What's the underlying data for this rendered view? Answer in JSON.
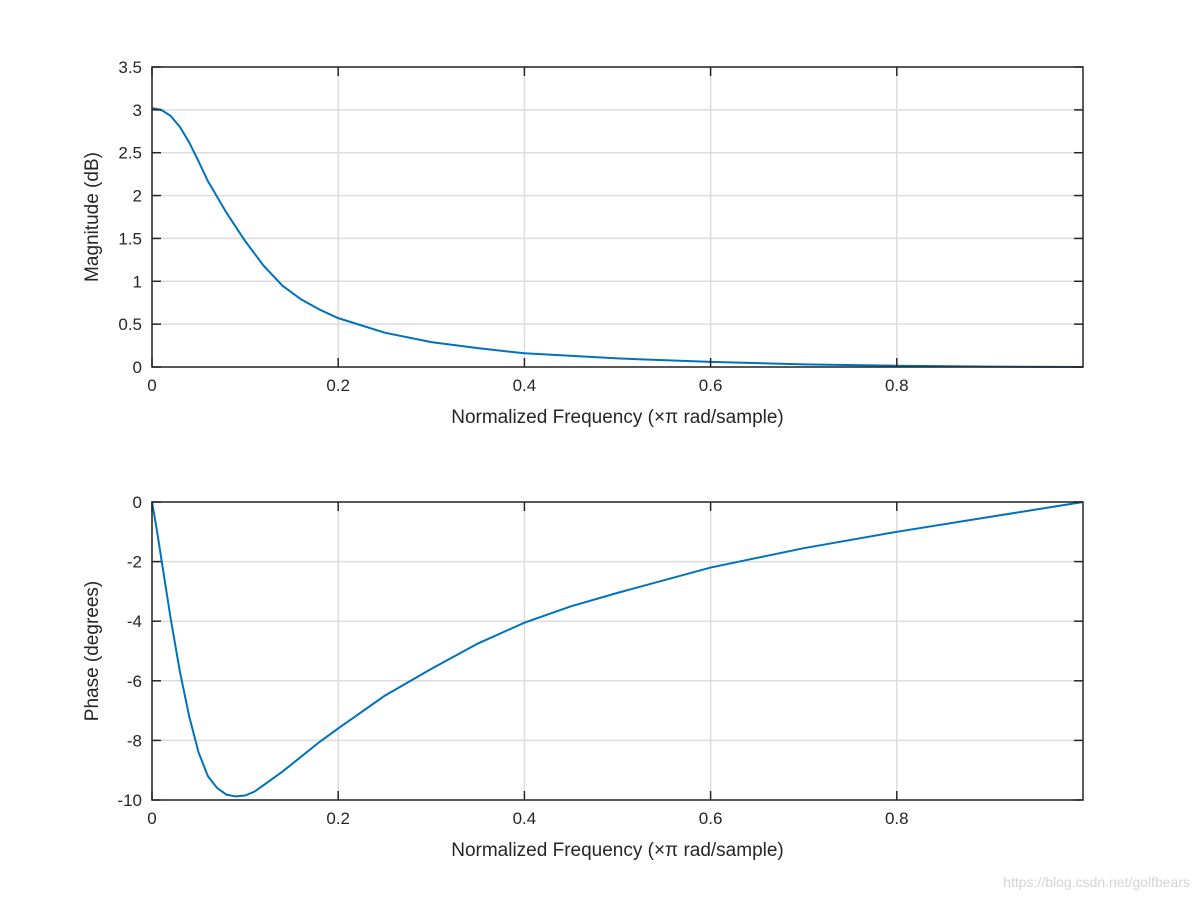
{
  "chart_data": [
    {
      "type": "line",
      "xlabel": "Normalized Frequency (×π rad/sample)",
      "ylabel": "Magnitude (dB)",
      "xlim": [
        0,
        1
      ],
      "ylim": [
        0,
        3.5
      ],
      "xticks": [
        0,
        0.2,
        0.4,
        0.6,
        0.8
      ],
      "xtick_labels": [
        "0",
        "0.2",
        "0.4",
        "0.6",
        "0.8"
      ],
      "yticks": [
        0,
        0.5,
        1,
        1.5,
        2,
        2.5,
        3,
        3.5
      ],
      "ytick_labels": [
        "0",
        "0.5",
        "1",
        "1.5",
        "2",
        "2.5",
        "3",
        "3.5"
      ],
      "grid": true,
      "series": [
        {
          "name": "Magnitude",
          "color": "#0072BD",
          "x": [
            0,
            0.01,
            0.02,
            0.03,
            0.04,
            0.05,
            0.06,
            0.08,
            0.1,
            0.12,
            0.14,
            0.16,
            0.18,
            0.2,
            0.25,
            0.3,
            0.35,
            0.4,
            0.5,
            0.6,
            0.7,
            0.8,
            0.9,
            1.0
          ],
          "y": [
            3.02,
            3.0,
            2.93,
            2.8,
            2.62,
            2.4,
            2.17,
            1.8,
            1.47,
            1.18,
            0.95,
            0.79,
            0.67,
            0.57,
            0.4,
            0.29,
            0.22,
            0.16,
            0.1,
            0.06,
            0.03,
            0.015,
            0.005,
            0.0
          ]
        }
      ]
    },
    {
      "type": "line",
      "xlabel": "Normalized Frequency (×π rad/sample)",
      "ylabel": "Phase (degrees)",
      "xlim": [
        0,
        1
      ],
      "ylim": [
        -10,
        0
      ],
      "xticks": [
        0,
        0.2,
        0.4,
        0.6,
        0.8
      ],
      "xtick_labels": [
        "0",
        "0.2",
        "0.4",
        "0.6",
        "0.8"
      ],
      "yticks": [
        -10,
        -8,
        -6,
        -4,
        -2,
        0
      ],
      "ytick_labels": [
        "-10",
        "-8",
        "-6",
        "-4",
        "-2",
        "0"
      ],
      "grid": true,
      "series": [
        {
          "name": "Phase",
          "color": "#0072BD",
          "x": [
            0,
            0.005,
            0.01,
            0.02,
            0.03,
            0.04,
            0.05,
            0.06,
            0.07,
            0.08,
            0.09,
            0.1,
            0.11,
            0.12,
            0.14,
            0.16,
            0.18,
            0.2,
            0.25,
            0.3,
            0.35,
            0.4,
            0.45,
            0.5,
            0.6,
            0.7,
            0.8,
            0.9,
            1.0
          ],
          "y": [
            0,
            -0.9,
            -1.9,
            -3.9,
            -5.7,
            -7.2,
            -8.4,
            -9.2,
            -9.6,
            -9.82,
            -9.88,
            -9.85,
            -9.72,
            -9.5,
            -9.05,
            -8.55,
            -8.05,
            -7.6,
            -6.5,
            -5.6,
            -4.75,
            -4.05,
            -3.5,
            -3.05,
            -2.2,
            -1.55,
            -1.0,
            -0.5,
            0.0
          ]
        }
      ]
    }
  ],
  "watermark": "https://blog.csdn.net/golfbears"
}
